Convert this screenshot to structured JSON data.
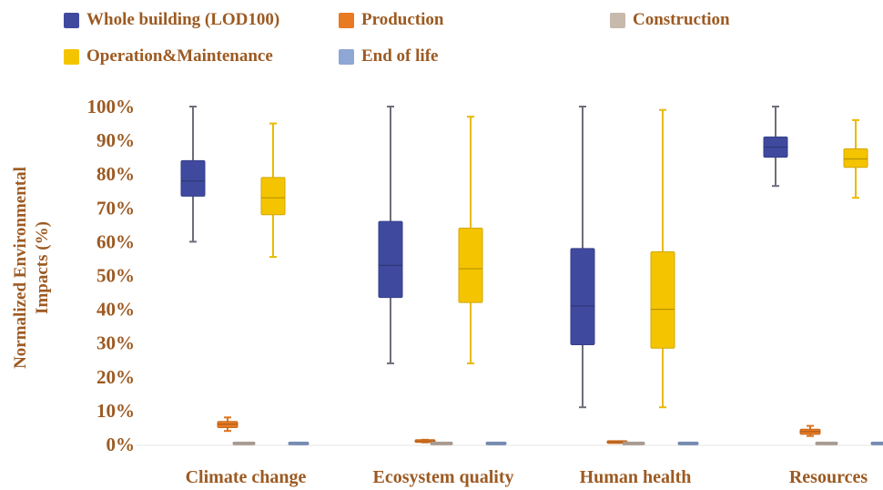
{
  "chart_data": {
    "type": "box",
    "ylabel_lines": [
      "Normalized Environmental",
      "Impacts (%)"
    ],
    "yticks": [
      "0%",
      "10%",
      "20%",
      "30%",
      "40%",
      "50%",
      "60%",
      "70%",
      "80%",
      "90%",
      "100%"
    ],
    "ylim": [
      0,
      100
    ],
    "categories": [
      "Climate change",
      "Ecosystem quality",
      "Human health",
      "Resources"
    ],
    "series": [
      {
        "name": "Whole building (LOD100)",
        "color": "#3f4a9f",
        "boxes": [
          {
            "min": 60,
            "q1": 73.5,
            "median": 78,
            "q3": 84,
            "max": 100
          },
          {
            "min": 24,
            "q1": 43.5,
            "median": 53,
            "q3": 66,
            "max": 100
          },
          {
            "min": 11,
            "q1": 29.5,
            "median": 41,
            "q3": 58,
            "max": 100
          },
          {
            "min": 76.5,
            "q1": 85,
            "median": 88,
            "q3": 91,
            "max": 100
          }
        ]
      },
      {
        "name": "Production",
        "color": "#e87a22",
        "boxes": [
          {
            "min": 4,
            "q1": 5,
            "median": 6,
            "q3": 6.8,
            "max": 8
          },
          {
            "min": 0.6,
            "q1": 0.8,
            "median": 1,
            "q3": 1.2,
            "max": 1.4
          },
          {
            "min": 0.5,
            "q1": 0.6,
            "median": 0.7,
            "q3": 0.8,
            "max": 0.9
          },
          {
            "min": 2.5,
            "q1": 3,
            "median": 3.8,
            "q3": 4.5,
            "max": 5.5
          }
        ]
      },
      {
        "name": "Construction",
        "color": "#c8b9ad",
        "boxes": [
          {
            "min": 0.1,
            "q1": 0.2,
            "median": 0.3,
            "q3": 0.4,
            "max": 0.5
          },
          {
            "min": 0.1,
            "q1": 0.2,
            "median": 0.3,
            "q3": 0.4,
            "max": 0.5
          },
          {
            "min": 0.1,
            "q1": 0.2,
            "median": 0.3,
            "q3": 0.4,
            "max": 0.5
          },
          {
            "min": 0.1,
            "q1": 0.2,
            "median": 0.3,
            "q3": 0.4,
            "max": 0.5
          }
        ]
      },
      {
        "name": "Operation&Maintenance",
        "color": "#f5c400",
        "boxes": [
          {
            "min": 55.5,
            "q1": 68,
            "median": 73,
            "q3": 79,
            "max": 95
          },
          {
            "min": 24,
            "q1": 42,
            "median": 52,
            "q3": 64,
            "max": 97
          },
          {
            "min": 11,
            "q1": 28.5,
            "median": 40,
            "q3": 57,
            "max": 99
          },
          {
            "min": 73,
            "q1": 82,
            "median": 84.5,
            "q3": 87.5,
            "max": 96
          }
        ]
      },
      {
        "name": "End of life",
        "color": "#8ea7d4",
        "boxes": [
          {
            "min": 0.1,
            "q1": 0.2,
            "median": 0.3,
            "q3": 0.4,
            "max": 0.5
          },
          {
            "min": 0.1,
            "q1": 0.2,
            "median": 0.3,
            "q3": 0.4,
            "max": 0.5
          },
          {
            "min": 0.1,
            "q1": 0.2,
            "median": 0.3,
            "q3": 0.4,
            "max": 0.5
          },
          {
            "min": 0.1,
            "q1": 0.2,
            "median": 0.3,
            "q3": 0.4,
            "max": 0.5
          }
        ]
      }
    ],
    "legend_placement": "top",
    "grid": false
  },
  "colors": {
    "text": "#9c5a22"
  }
}
